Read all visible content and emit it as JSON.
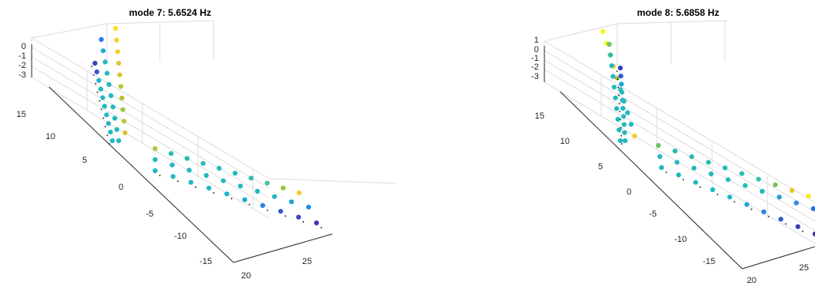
{
  "figure": {
    "panels": [
      {
        "title": "mode 7:  5.6524 Hz",
        "z_ticks": [
          "0",
          "-1",
          "-2",
          "-3"
        ],
        "y_ticks": [
          "15",
          "10",
          "5",
          "0",
          "-5",
          "-10",
          "-15"
        ],
        "x_ticks": [
          "20",
          "25"
        ]
      },
      {
        "title": "mode 8:  5.6858 Hz",
        "z_ticks": [
          "1",
          "0",
          "-1",
          "-2",
          "-3"
        ],
        "y_ticks": [
          "15",
          "10",
          "5",
          "0",
          "-5",
          "-10",
          "-15"
        ],
        "x_ticks": [
          "20",
          "25"
        ]
      }
    ]
  },
  "chart_data": [
    {
      "type": "scatter",
      "title": "mode 7:  5.6524 Hz",
      "projection": "3d",
      "zlim": [
        -3.5,
        0.5
      ],
      "ylim": [
        -17,
        17
      ],
      "xlim": [
        18,
        28
      ],
      "grid": true,
      "colormap": "parula",
      "colormap_stops": [
        "#3e26a8",
        "#2c78ef",
        "#1ab2cf",
        "#2ec4a8",
        "#8dc63f",
        "#fbc230",
        "#f9fb0e"
      ],
      "series": [
        {
          "desc": "left leg (3 rows), y 16 → 2",
          "rows": 3,
          "y": [
            16,
            14.5,
            13,
            11.5,
            10,
            8.5,
            7,
            5.5,
            4,
            2.5
          ],
          "color_level": [
            [
              0.92,
              0.88,
              0.85,
              0.8,
              0.78,
              0.74,
              0.72,
              0.7,
              0.74,
              0.78
            ],
            [
              0.18,
              0.32,
              0.4,
              0.4,
              0.4,
              0.4,
              0.4,
              0.4,
              0.4,
              0.4
            ],
            [
              0.05,
              0.1,
              0.35,
              0.4,
              0.4,
              0.4,
              0.4,
              0.4,
              0.4,
              0.4
            ]
          ]
        },
        {
          "desc": "lower span (3 rows), y 1 → -17",
          "rows": 3,
          "y": [
            1,
            -1,
            -3,
            -5,
            -7,
            -9,
            -11,
            -13,
            -15,
            -17
          ],
          "color_level": [
            [
              0.72,
              0.42,
              0.42,
              0.42,
              0.42,
              0.42,
              0.45,
              0.55,
              0.68,
              0.86
            ],
            [
              0.4,
              0.4,
              0.4,
              0.4,
              0.4,
              0.4,
              0.4,
              0.38,
              0.3,
              0.22
            ],
            [
              0.38,
              0.38,
              0.38,
              0.38,
              0.36,
              0.3,
              0.2,
              0.1,
              0.06,
              0.04
            ]
          ]
        }
      ]
    },
    {
      "type": "scatter",
      "title": "mode 8:  5.6858 Hz",
      "projection": "3d",
      "zlim": [
        -3.5,
        1.5
      ],
      "ylim": [
        -17,
        17
      ],
      "xlim": [
        18,
        28
      ],
      "grid": true,
      "colormap": "parula",
      "colormap_stops": [
        "#3e26a8",
        "#2c78ef",
        "#1ab2cf",
        "#2ec4a8",
        "#8dc63f",
        "#fbc230",
        "#f9fb0e"
      ],
      "series": [
        {
          "desc": "left leg (3 rows), y 16 → 2",
          "rows": 3,
          "y": [
            16,
            14.5,
            13,
            11.5,
            10,
            8.5,
            7,
            5.5,
            4,
            2.5
          ],
          "color_level": [
            [
              1.0,
              0.98,
              0.92,
              0.88,
              0.7,
              0.5,
              0.42,
              0.4,
              0.4,
              0.86
            ],
            [
              0.6,
              0.45,
              0.4,
              0.4,
              0.4,
              0.4,
              0.4,
              0.4,
              0.4,
              0.4
            ],
            [
              0.05,
              0.1,
              0.3,
              0.4,
              0.4,
              0.4,
              0.4,
              0.4,
              0.4,
              0.4
            ]
          ]
        },
        {
          "desc": "lower span (3 rows), y 1 → -17",
          "rows": 3,
          "y": [
            1,
            -1,
            -3,
            -5,
            -7,
            -9,
            -11,
            -13,
            -15,
            -17
          ],
          "color_level": [
            [
              0.6,
              0.42,
              0.42,
              0.42,
              0.42,
              0.45,
              0.5,
              0.62,
              0.8,
              0.95
            ],
            [
              0.4,
              0.4,
              0.4,
              0.4,
              0.4,
              0.4,
              0.38,
              0.3,
              0.22,
              0.15
            ],
            [
              0.38,
              0.38,
              0.38,
              0.38,
              0.36,
              0.3,
              0.2,
              0.1,
              0.05,
              0.03
            ]
          ]
        }
      ]
    }
  ]
}
